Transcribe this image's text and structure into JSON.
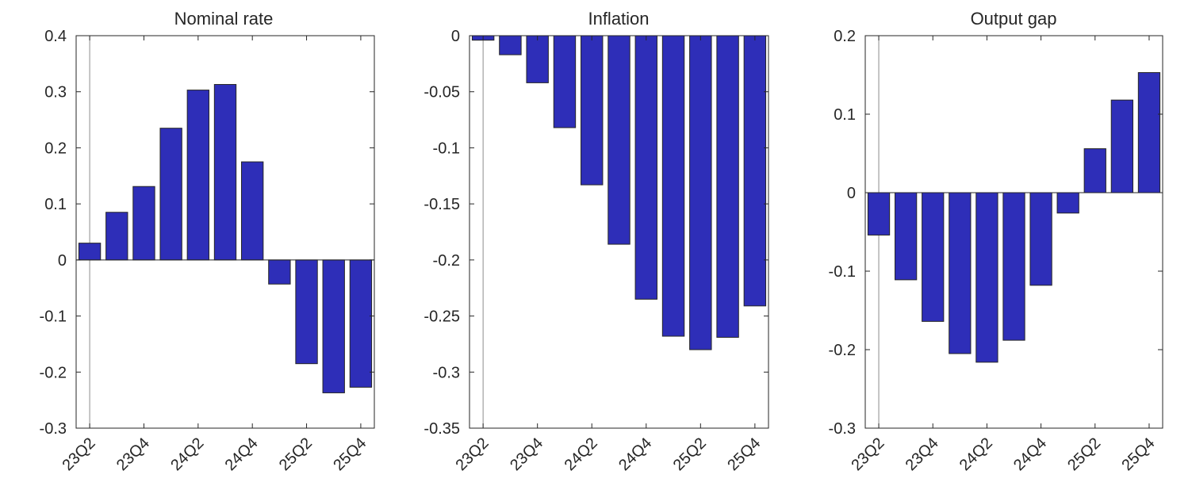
{
  "colors": {
    "bar": "#2e2eb8",
    "axis": "#262626",
    "marker_line": "#8c8c8c",
    "background": "#ffffff"
  },
  "chart_data": [
    {
      "type": "bar",
      "title": "Nominal rate",
      "categories": [
        "23Q2",
        "23Q3",
        "23Q4",
        "24Q1",
        "24Q2",
        "24Q3",
        "24Q4",
        "25Q1",
        "25Q2",
        "25Q3",
        "25Q4"
      ],
      "values": [
        0.03,
        0.085,
        0.131,
        0.235,
        0.303,
        0.313,
        0.175,
        -0.043,
        -0.185,
        -0.237,
        -0.227
      ],
      "ylim": [
        -0.3,
        0.4
      ],
      "yticks": [
        -0.3,
        -0.2,
        -0.1,
        0,
        0.1,
        0.2,
        0.3,
        0.4
      ],
      "ytick_labels": [
        "-0.3",
        "-0.2",
        "-0.1",
        "0",
        "0.1",
        "0.2",
        "0.3",
        "0.4"
      ],
      "xtick_labels": [
        "23Q2",
        "23Q4",
        "24Q2",
        "24Q4",
        "25Q2",
        "25Q4"
      ],
      "xlabel": "",
      "ylabel": "",
      "grid": false,
      "marker_category": "23Q2"
    },
    {
      "type": "bar",
      "title": "Inflation",
      "categories": [
        "23Q2",
        "23Q3",
        "23Q4",
        "24Q1",
        "24Q2",
        "24Q3",
        "24Q4",
        "25Q1",
        "25Q2",
        "25Q3",
        "25Q4"
      ],
      "values": [
        -0.004,
        -0.017,
        -0.042,
        -0.082,
        -0.133,
        -0.186,
        -0.235,
        -0.268,
        -0.28,
        -0.269,
        -0.241
      ],
      "ylim": [
        -0.35,
        0
      ],
      "yticks": [
        -0.35,
        -0.3,
        -0.25,
        -0.2,
        -0.15,
        -0.1,
        -0.05,
        0
      ],
      "ytick_labels": [
        "-0.35",
        "-0.3",
        "-0.25",
        "-0.2",
        "-0.15",
        "-0.1",
        "-0.05",
        "0"
      ],
      "xtick_labels": [
        "23Q2",
        "23Q4",
        "24Q2",
        "24Q4",
        "25Q2",
        "25Q4"
      ],
      "xlabel": "",
      "ylabel": "",
      "grid": false,
      "marker_category": "23Q2"
    },
    {
      "type": "bar",
      "title": "Output gap",
      "categories": [
        "23Q2",
        "23Q3",
        "23Q4",
        "24Q1",
        "24Q2",
        "24Q3",
        "24Q4",
        "25Q1",
        "25Q2",
        "25Q3",
        "25Q4"
      ],
      "values": [
        -0.054,
        -0.111,
        -0.164,
        -0.205,
        -0.216,
        -0.188,
        -0.118,
        -0.026,
        0.056,
        0.118,
        0.153
      ],
      "ylim": [
        -0.3,
        0.2
      ],
      "yticks": [
        -0.3,
        -0.2,
        -0.1,
        0,
        0.1,
        0.2
      ],
      "ytick_labels": [
        "-0.3",
        "-0.2",
        "-0.1",
        "0",
        "0.1",
        "0.2"
      ],
      "xtick_labels": [
        "23Q2",
        "23Q4",
        "24Q2",
        "24Q4",
        "25Q2",
        "25Q4"
      ],
      "xlabel": "",
      "ylabel": "",
      "grid": false,
      "marker_category": "23Q2"
    }
  ]
}
